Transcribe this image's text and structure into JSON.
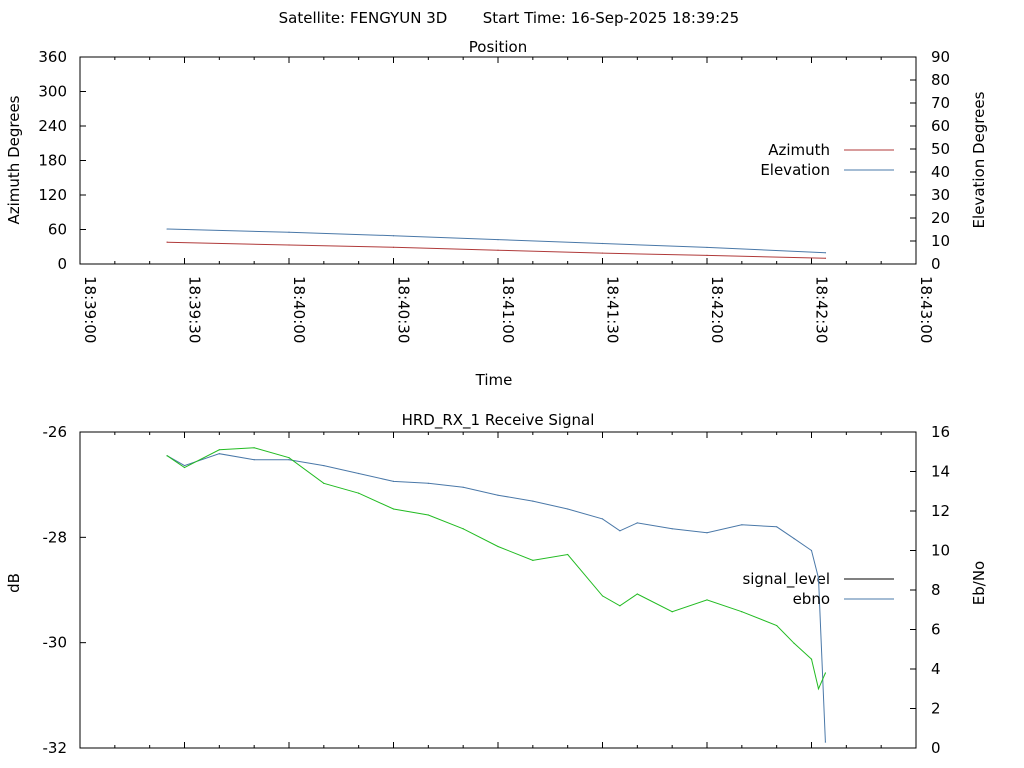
{
  "header": {
    "satellite": "Satellite: FENGYUN 3D",
    "start_time": "Start Time: 16-Sep-2025 18:39:25"
  },
  "chart_data": [
    {
      "type": "line",
      "title": "Position",
      "xlabel": "Time",
      "ylabel_left": "Azimuth Degrees",
      "ylabel_right": "Elevation Degrees",
      "xlim": [
        "18:39:00",
        "18:43:00"
      ],
      "x_ticks": [
        "18:39:00",
        "18:39:30",
        "18:40:00",
        "18:40:30",
        "18:41:00",
        "18:41:30",
        "18:42:00",
        "18:42:30",
        "18:43:00"
      ],
      "ylim_left": [
        0,
        360
      ],
      "ylim_right": [
        0,
        90
      ],
      "y_ticks_left": [
        "0",
        "60",
        "120",
        "180",
        "240",
        "300",
        "360"
      ],
      "y_ticks_right": [
        "0",
        "10",
        "20",
        "30",
        "40",
        "50",
        "60",
        "70",
        "80",
        "90"
      ],
      "legend_position": "right",
      "grid": false,
      "series": [
        {
          "name": "Azimuth",
          "axis": "left",
          "color": "#b03a3a",
          "x": [
            "18:39:25",
            "18:40:00",
            "18:40:30",
            "18:41:00",
            "18:41:30",
            "18:42:00",
            "18:42:34"
          ],
          "y": [
            38,
            33,
            29,
            24,
            19,
            15,
            10
          ]
        },
        {
          "name": "Elevation",
          "axis": "right",
          "color": "#4a78a8",
          "x": [
            "18:39:25",
            "18:40:00",
            "18:40:30",
            "18:41:00",
            "18:41:30",
            "18:42:00",
            "18:42:34"
          ],
          "y": [
            15.2,
            13.8,
            12.3,
            10.6,
            8.9,
            7.2,
            4.9
          ]
        }
      ]
    },
    {
      "type": "line",
      "title": "HRD_RX_1 Receive Signal",
      "xlabel": "",
      "ylabel_left": "dB",
      "ylabel_right": "Eb/No",
      "xlim": [
        "18:39:00",
        "18:43:00"
      ],
      "ylim_left": [
        -32,
        -26
      ],
      "ylim_right": [
        0,
        16
      ],
      "y_ticks_left": [
        "-32",
        "-30",
        "-28",
        "-26"
      ],
      "y_ticks_right": [
        "0",
        "2",
        "4",
        "6",
        "8",
        "10",
        "12",
        "14",
        "16"
      ],
      "legend_position": "right",
      "grid": false,
      "series": [
        {
          "name": "signal_level",
          "axis": "left",
          "color": "#000000",
          "legend_only": true,
          "x": [],
          "y": []
        },
        {
          "name": "ebno",
          "axis": "right",
          "color": "#4a78a8",
          "x": [
            "18:39:25",
            "18:39:30",
            "18:39:40",
            "18:39:50",
            "18:40:00",
            "18:40:10",
            "18:40:20",
            "18:40:30",
            "18:40:40",
            "18:40:50",
            "18:41:00",
            "18:41:10",
            "18:41:20",
            "18:41:30",
            "18:41:35",
            "18:41:40",
            "18:41:50",
            "18:42:00",
            "18:42:10",
            "18:42:20",
            "18:42:25",
            "18:42:30",
            "18:42:32",
            "18:42:34"
          ],
          "y": [
            14.8,
            14.3,
            14.9,
            14.6,
            14.6,
            14.3,
            13.9,
            13.5,
            13.4,
            13.2,
            12.8,
            12.5,
            12.1,
            11.6,
            11.0,
            11.4,
            11.1,
            10.9,
            11.3,
            11.2,
            10.6,
            10.0,
            8.6,
            0.3
          ]
        },
        {
          "name": "",
          "axis": "right",
          "color": "#22bb22",
          "x": [
            "18:39:25",
            "18:39:30",
            "18:39:40",
            "18:39:50",
            "18:40:00",
            "18:40:10",
            "18:40:20",
            "18:40:30",
            "18:40:40",
            "18:40:50",
            "18:41:00",
            "18:41:10",
            "18:41:20",
            "18:41:30",
            "18:41:35",
            "18:41:40",
            "18:41:50",
            "18:42:00",
            "18:42:10",
            "18:42:20",
            "18:42:25",
            "18:42:30",
            "18:42:32",
            "18:42:34"
          ],
          "y": [
            14.8,
            14.2,
            15.1,
            15.2,
            14.7,
            13.4,
            12.9,
            12.1,
            11.8,
            11.1,
            10.2,
            9.5,
            9.8,
            7.7,
            7.2,
            7.8,
            6.9,
            7.5,
            6.9,
            6.2,
            5.3,
            4.5,
            3.0,
            3.8
          ]
        }
      ]
    }
  ]
}
